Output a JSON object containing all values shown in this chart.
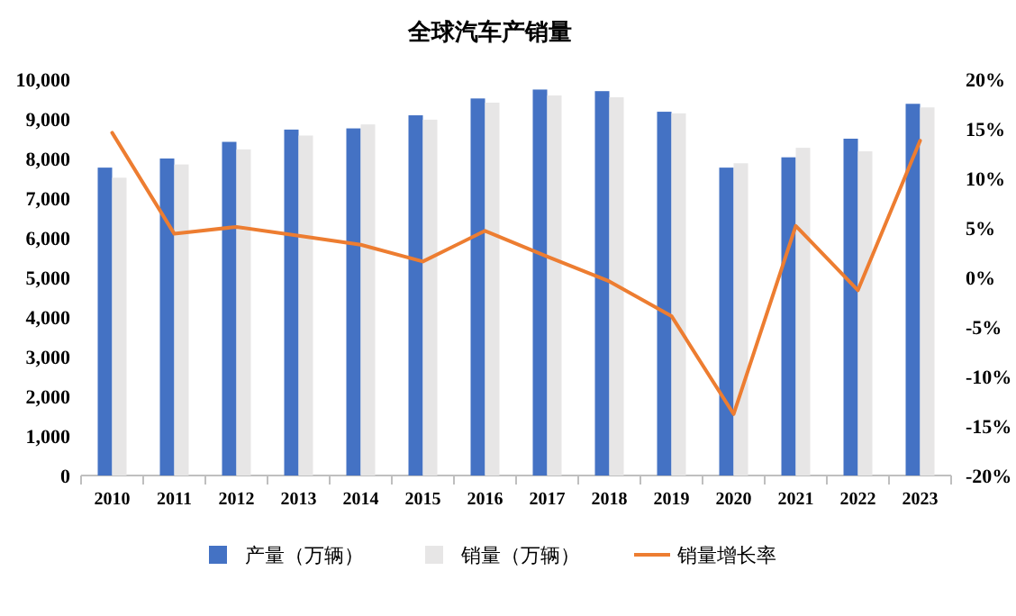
{
  "chart_data": {
    "type": "bar",
    "title": "全球汽车产销量",
    "categories": [
      "2010",
      "2011",
      "2012",
      "2013",
      "2014",
      "2015",
      "2016",
      "2017",
      "2018",
      "2019",
      "2020",
      "2021",
      "2022",
      "2023"
    ],
    "series": [
      {
        "name": "产量（万辆）",
        "color": "#4472c4",
        "values": [
          7770,
          8000,
          8420,
          8730,
          8760,
          9090,
          9515,
          9740,
          9700,
          9180,
          7770,
          8030,
          8500,
          9380
        ]
      },
      {
        "name": "销量（万辆）",
        "color": "#e7e6e6",
        "values": [
          7515,
          7850,
          8230,
          8580,
          8860,
          8980,
          9410,
          9590,
          9545,
          9140,
          7880,
          8270,
          8180,
          9290
        ]
      },
      {
        "name": "销量增长率",
        "type": "line",
        "axis": "y2",
        "color": "#ed7d31",
        "values": [
          14.6,
          4.4,
          5.1,
          4.2,
          3.3,
          1.6,
          4.7,
          2.1,
          -0.4,
          -3.9,
          -13.8,
          5.2,
          -1.3,
          13.8
        ]
      }
    ],
    "ylim": [
      0,
      10000
    ],
    "yticks": [
      0,
      {
        "value": 1000,
        "label": "1,000"
      },
      {
        "value": 2000,
        "label": "2,000"
      },
      {
        "value": 3000,
        "label": "3,000"
      },
      {
        "value": 4000,
        "label": "4,000"
      },
      {
        "value": 5000,
        "label": "5,000"
      },
      {
        "value": 6000,
        "label": "6,000"
      },
      {
        "value": 7000,
        "label": "7,000"
      },
      {
        "value": 8000,
        "label": "8,000"
      },
      {
        "value": 9000,
        "label": "9,000"
      },
      {
        "value": 10000,
        "label": "10,000"
      }
    ],
    "y2lim": [
      -20,
      20
    ],
    "y2ticks": [
      {
        "value": -20,
        "label": "-20%"
      },
      {
        "value": -15,
        "label": "-15%"
      },
      {
        "value": -10,
        "label": "-10%"
      },
      {
        "value": -5,
        "label": "-5%"
      },
      {
        "value": 0,
        "label": "0%"
      },
      {
        "value": 5,
        "label": "5%"
      },
      {
        "value": 10,
        "label": "10%"
      },
      {
        "value": 15,
        "label": "15%"
      },
      {
        "value": 20,
        "label": "20%"
      }
    ],
    "legend": "bottom"
  }
}
